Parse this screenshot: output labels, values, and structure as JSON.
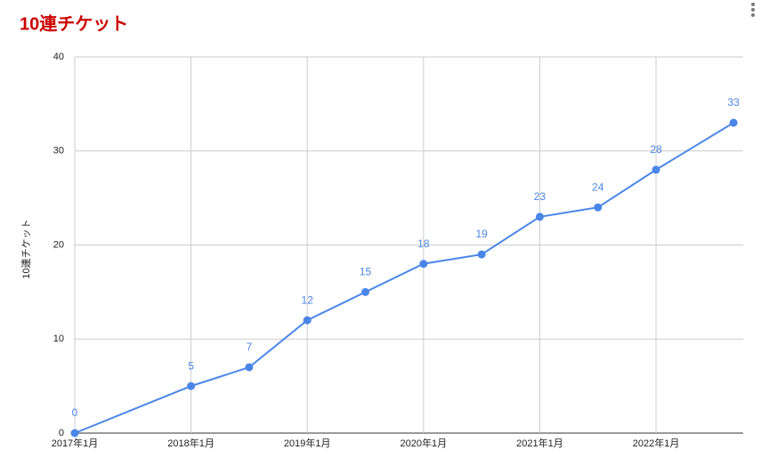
{
  "chart_data": {
    "type": "line",
    "title": "10連チケット",
    "y_label": "10連チケット",
    "x": [
      "2017-01",
      "2018-01",
      "2018-07",
      "2019-01",
      "2019-07",
      "2020-01",
      "2020-07",
      "2021-01",
      "2021-07",
      "2022-01",
      "2022-09"
    ],
    "series": [
      {
        "name": "10連チケット",
        "color": "#4a86e8",
        "values": [
          0,
          5,
          7,
          12,
          15,
          18,
          19,
          23,
          24,
          28,
          33
        ]
      }
    ],
    "xlim": [
      "2017-01",
      "2022-10"
    ],
    "xticks": [
      {
        "value": "2017-01",
        "label": "2017年1月"
      },
      {
        "value": "2018-01",
        "label": "2018年1月"
      },
      {
        "value": "2019-01",
        "label": "2019年1月"
      },
      {
        "value": "2020-01",
        "label": "2020年1月"
      },
      {
        "value": "2021-01",
        "label": "2021年1月"
      },
      {
        "value": "2022-01",
        "label": "2022年1月"
      }
    ],
    "ylim": [
      0,
      40
    ],
    "yticks": [
      0,
      10,
      20,
      30,
      40
    ],
    "grid": true,
    "title_color": "#cc0000"
  }
}
